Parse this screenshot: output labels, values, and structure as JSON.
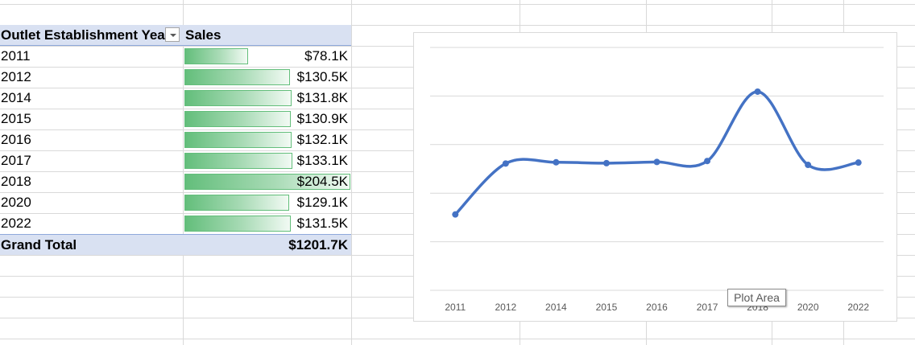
{
  "pivot": {
    "header": {
      "year_label": "Outlet Establishment Yea",
      "sales_label": "Sales"
    },
    "rows": [
      {
        "year": "2011",
        "sales": "$78.1K",
        "fraction": 0.382
      },
      {
        "year": "2012",
        "sales": "$130.5K",
        "fraction": 0.638
      },
      {
        "year": "2014",
        "sales": "$131.8K",
        "fraction": 0.645
      },
      {
        "year": "2015",
        "sales": "$130.9K",
        "fraction": 0.64
      },
      {
        "year": "2016",
        "sales": "$132.1K",
        "fraction": 0.646
      },
      {
        "year": "2017",
        "sales": "$133.1K",
        "fraction": 0.651
      },
      {
        "year": "2018",
        "sales": "$204.5K",
        "fraction": 1.0
      },
      {
        "year": "2020",
        "sales": "$129.1K",
        "fraction": 0.631
      },
      {
        "year": "2022",
        "sales": "$131.5K",
        "fraction": 0.643
      }
    ],
    "total": {
      "label": "Grand Total",
      "value": "$1201.7K"
    }
  },
  "tooltip": {
    "text": "Plot Area"
  },
  "colors": {
    "line": "#4472c4",
    "databar": "#63be7b",
    "header_fill": "#d9e1f2"
  },
  "chart_data": {
    "type": "line",
    "smooth": true,
    "categories": [
      "2011",
      "2012",
      "2014",
      "2015",
      "2016",
      "2017",
      "2018",
      "2020",
      "2022"
    ],
    "values": [
      78.1,
      130.5,
      131.8,
      130.9,
      132.1,
      133.1,
      204.5,
      129.1,
      131.5
    ],
    "ylim": [
      0,
      250
    ],
    "grid": true,
    "legend": "none",
    "title": "",
    "xlabel": "",
    "ylabel": ""
  }
}
